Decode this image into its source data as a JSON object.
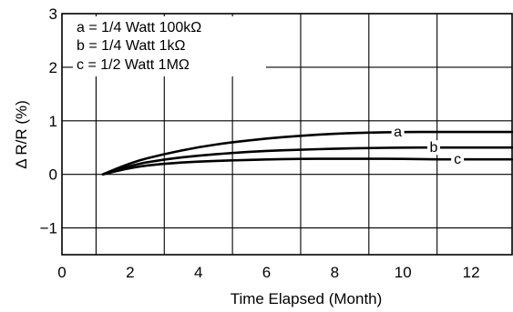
{
  "chart_data": {
    "type": "line",
    "xlabel": "Time Elapsed (Month)",
    "ylabel": "Δ R/R (%)",
    "xlim": [
      0,
      13.2
    ],
    "ylim": [
      -1.5,
      3
    ],
    "x_ticks": [
      0,
      2,
      4,
      6,
      8,
      10,
      12
    ],
    "y_ticks": [
      -1,
      0,
      1,
      2,
      3
    ],
    "y_tick_labels": [
      "−1",
      "0",
      "1",
      "2",
      "3"
    ],
    "grid": true,
    "legend_position": "top-left",
    "legend": [
      "a = 1/4 Watt 100kΩ",
      "b = 1/4 Watt 1kΩ",
      "c = 1/2 Watt 1MΩ"
    ],
    "series": [
      {
        "name": "a",
        "x": [
          1.2,
          2,
          3,
          4,
          5,
          6,
          7,
          8,
          9,
          10,
          11,
          12,
          13.2
        ],
        "y": [
          0,
          0.22,
          0.38,
          0.51,
          0.6,
          0.67,
          0.72,
          0.76,
          0.78,
          0.79,
          0.79,
          0.79,
          0.79
        ]
      },
      {
        "name": "b",
        "x": [
          1.2,
          2,
          3,
          4,
          5,
          6,
          7,
          8,
          9,
          10,
          11,
          12,
          13.2
        ],
        "y": [
          0,
          0.17,
          0.28,
          0.35,
          0.4,
          0.44,
          0.46,
          0.48,
          0.49,
          0.5,
          0.5,
          0.5,
          0.5
        ]
      },
      {
        "name": "c",
        "x": [
          1.2,
          2,
          3,
          4,
          5,
          6,
          7,
          8,
          9,
          10,
          11,
          12,
          13.2
        ],
        "y": [
          0,
          0.13,
          0.2,
          0.24,
          0.26,
          0.28,
          0.29,
          0.29,
          0.29,
          0.29,
          0.28,
          0.28,
          0.28
        ]
      }
    ]
  }
}
